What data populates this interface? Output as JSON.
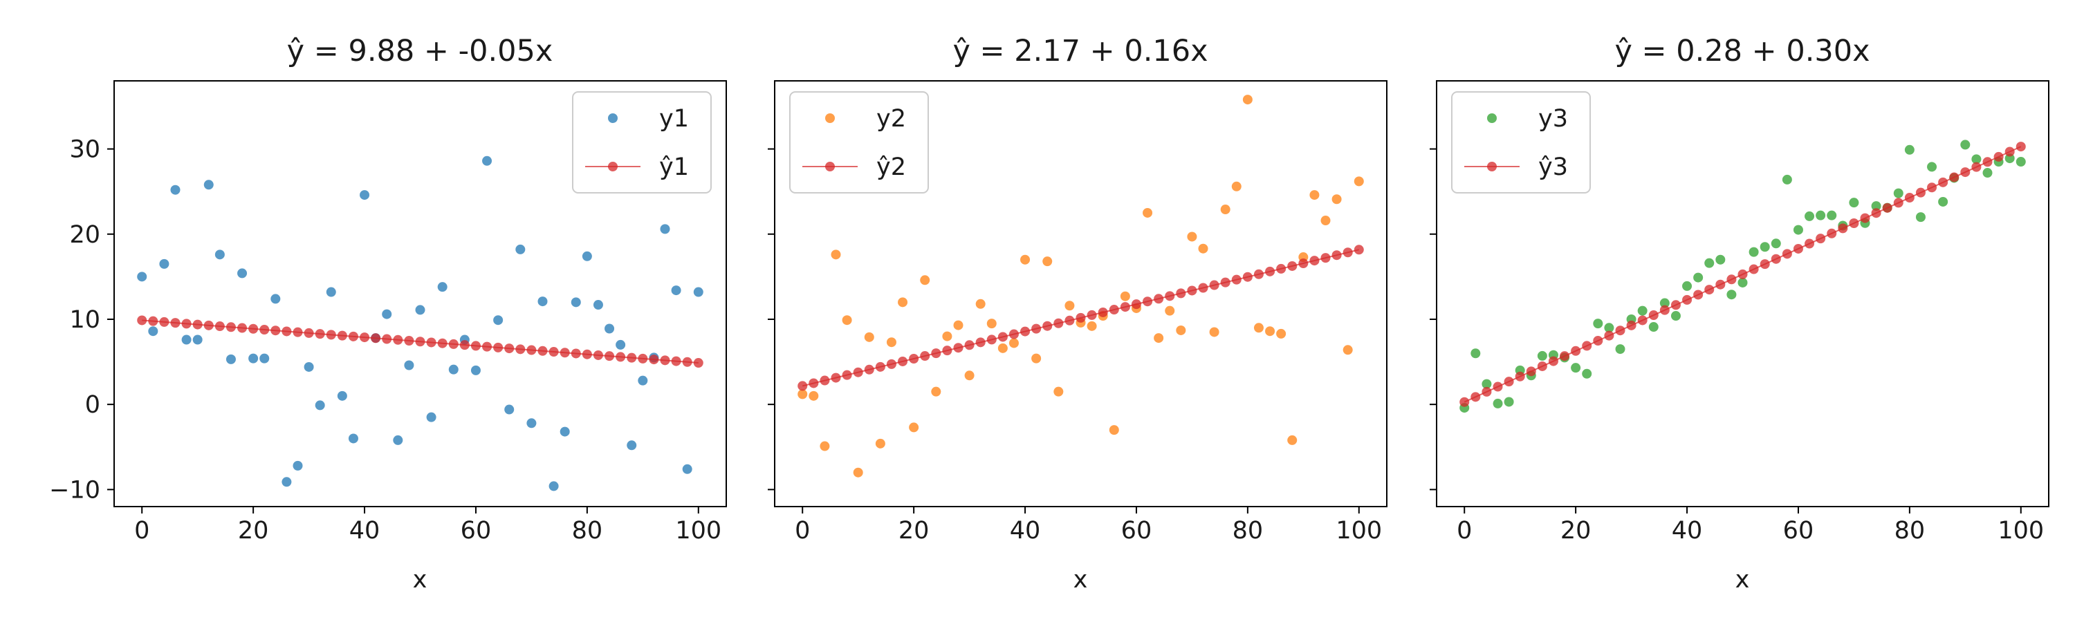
{
  "chart_data": [
    {
      "type": "scatter",
      "title": "ŷ = 9.88 + -0.05x",
      "xlabel": "x",
      "ylabel": "",
      "xlim": [
        -5,
        105
      ],
      "ylim": [
        -12,
        38
      ],
      "xticks": [
        0,
        20,
        40,
        60,
        80,
        100
      ],
      "yticks": [
        -10,
        0,
        10,
        20,
        30
      ],
      "grid": false,
      "legend": "top-right",
      "fit": {
        "intercept": 9.88,
        "slope": -0.05
      },
      "series": [
        {
          "name": "y1",
          "kind": "points",
          "color": "#1f77b4",
          "x": [
            0,
            2,
            4,
            6,
            8,
            10,
            12,
            14,
            16,
            18,
            20,
            22,
            24,
            26,
            28,
            30,
            32,
            34,
            36,
            38,
            40,
            42,
            44,
            46,
            48,
            50,
            52,
            54,
            56,
            58,
            60,
            62,
            64,
            66,
            68,
            70,
            72,
            74,
            76,
            78,
            80,
            82,
            84,
            86,
            88,
            90,
            92,
            94,
            96,
            98,
            100
          ],
          "y": [
            15,
            8.6,
            16.5,
            25.2,
            7.6,
            7.6,
            25.8,
            17.6,
            5.3,
            15.4,
            5.4,
            5.4,
            12.4,
            -9.1,
            -7.2,
            4.4,
            -0.1,
            13.2,
            1,
            -4,
            24.6,
            7.8,
            10.6,
            -4.2,
            4.6,
            11.1,
            -1.5,
            13.8,
            4.1,
            7.6,
            4,
            28.6,
            9.9,
            -0.6,
            18.2,
            -2.2,
            12.1,
            -9.6,
            -3.2,
            12,
            17.4,
            11.7,
            8.9,
            7,
            -4.8,
            2.8,
            5.5,
            20.6,
            13.4,
            -7.6,
            13.2
          ]
        },
        {
          "name": "ŷ1",
          "kind": "fit",
          "color": "#d62728",
          "x": [
            0,
            2,
            4,
            6,
            8,
            10,
            12,
            14,
            16,
            18,
            20,
            22,
            24,
            26,
            28,
            30,
            32,
            34,
            36,
            38,
            40,
            42,
            44,
            46,
            48,
            50,
            52,
            54,
            56,
            58,
            60,
            62,
            64,
            66,
            68,
            70,
            72,
            74,
            76,
            78,
            80,
            82,
            84,
            86,
            88,
            90,
            92,
            94,
            96,
            98,
            100
          ],
          "y": [
            9.88,
            9.78,
            9.68,
            9.58,
            9.48,
            9.38,
            9.28,
            9.18,
            9.08,
            8.98,
            8.88,
            8.78,
            8.68,
            8.58,
            8.48,
            8.38,
            8.28,
            8.18,
            8.08,
            7.98,
            7.88,
            7.78,
            7.68,
            7.58,
            7.48,
            7.38,
            7.28,
            7.18,
            7.08,
            6.98,
            6.88,
            6.78,
            6.68,
            6.58,
            6.48,
            6.38,
            6.28,
            6.18,
            6.08,
            5.98,
            5.88,
            5.78,
            5.68,
            5.58,
            5.48,
            5.38,
            5.28,
            5.18,
            5.08,
            4.98,
            4.88
          ]
        }
      ]
    },
    {
      "type": "scatter",
      "title": "ŷ = 2.17 + 0.16x",
      "xlabel": "x",
      "ylabel": "",
      "xlim": [
        -5,
        105
      ],
      "ylim": [
        -12,
        38
      ],
      "xticks": [
        0,
        20,
        40,
        60,
        80,
        100
      ],
      "yticks": [
        -10,
        0,
        10,
        20,
        30
      ],
      "grid": false,
      "legend": "top-left",
      "fit": {
        "intercept": 2.17,
        "slope": 0.16
      },
      "series": [
        {
          "name": "y2",
          "kind": "points",
          "color": "#ff7f0e",
          "x": [
            0,
            2,
            4,
            6,
            8,
            10,
            12,
            14,
            16,
            18,
            20,
            22,
            24,
            26,
            28,
            30,
            32,
            34,
            36,
            38,
            40,
            42,
            44,
            46,
            48,
            50,
            52,
            54,
            56,
            58,
            60,
            62,
            64,
            66,
            68,
            70,
            72,
            74,
            76,
            78,
            80,
            82,
            84,
            86,
            88,
            90,
            92,
            94,
            96,
            98,
            100
          ],
          "y": [
            1.2,
            1,
            -4.9,
            17.6,
            9.9,
            -8,
            7.9,
            -4.6,
            7.3,
            12,
            -2.7,
            14.6,
            1.5,
            8,
            9.3,
            3.4,
            11.8,
            9.5,
            6.6,
            7.2,
            17,
            5.4,
            16.8,
            1.5,
            11.6,
            9.6,
            9.2,
            10.4,
            -3,
            12.7,
            11.3,
            22.5,
            7.8,
            11,
            8.7,
            19.7,
            18.3,
            8.5,
            22.9,
            25.6,
            35.8,
            9,
            8.6,
            8.3,
            -4.2,
            17.3,
            24.6,
            21.6,
            24.1,
            6.4,
            26.2
          ]
        },
        {
          "name": "ŷ2",
          "kind": "fit",
          "color": "#d62728",
          "x": [
            0,
            2,
            4,
            6,
            8,
            10,
            12,
            14,
            16,
            18,
            20,
            22,
            24,
            26,
            28,
            30,
            32,
            34,
            36,
            38,
            40,
            42,
            44,
            46,
            48,
            50,
            52,
            54,
            56,
            58,
            60,
            62,
            64,
            66,
            68,
            70,
            72,
            74,
            76,
            78,
            80,
            82,
            84,
            86,
            88,
            90,
            92,
            94,
            96,
            98,
            100
          ],
          "y": [
            2.17,
            2.49,
            2.81,
            3.13,
            3.45,
            3.77,
            4.09,
            4.41,
            4.73,
            5.05,
            5.37,
            5.69,
            6.01,
            6.33,
            6.65,
            6.97,
            7.29,
            7.61,
            7.93,
            8.25,
            8.57,
            8.89,
            9.21,
            9.53,
            9.85,
            10.17,
            10.49,
            10.81,
            11.13,
            11.45,
            11.77,
            12.09,
            12.41,
            12.73,
            13.05,
            13.37,
            13.69,
            14.01,
            14.33,
            14.65,
            14.97,
            15.29,
            15.61,
            15.93,
            16.25,
            16.57,
            16.89,
            17.21,
            17.53,
            17.85,
            18.17
          ]
        }
      ]
    },
    {
      "type": "scatter",
      "title": "ŷ = 0.28 + 0.30x",
      "xlabel": "x",
      "ylabel": "",
      "xlim": [
        -5,
        105
      ],
      "ylim": [
        -12,
        38
      ],
      "xticks": [
        0,
        20,
        40,
        60,
        80,
        100
      ],
      "yticks": [
        -10,
        0,
        10,
        20,
        30
      ],
      "grid": false,
      "legend": "top-left",
      "fit": {
        "intercept": 0.28,
        "slope": 0.3
      },
      "series": [
        {
          "name": "y3",
          "kind": "points",
          "color": "#2ca02c",
          "x": [
            0,
            2,
            4,
            6,
            8,
            10,
            12,
            14,
            16,
            18,
            20,
            22,
            24,
            26,
            28,
            30,
            32,
            34,
            36,
            38,
            40,
            42,
            44,
            46,
            48,
            50,
            52,
            54,
            56,
            58,
            60,
            62,
            64,
            66,
            68,
            70,
            72,
            74,
            76,
            78,
            80,
            82,
            84,
            86,
            88,
            90,
            92,
            94,
            96,
            98,
            100
          ],
          "y": [
            -0.4,
            6,
            2.4,
            0.1,
            0.3,
            4,
            3.4,
            5.7,
            5.8,
            5.5,
            4.3,
            3.6,
            9.5,
            9,
            6.5,
            10,
            11,
            9.1,
            11.9,
            10.4,
            13.9,
            14.9,
            16.6,
            17,
            12.9,
            14.3,
            17.9,
            18.5,
            18.9,
            26.4,
            20.5,
            22.1,
            22.2,
            22.2,
            21,
            23.7,
            21.3,
            23.3,
            23.1,
            24.8,
            29.9,
            22,
            27.9,
            23.8,
            26.6,
            30.5,
            28.8,
            27.2,
            28.5,
            28.9,
            28.5
          ]
        },
        {
          "name": "ŷ3",
          "kind": "fit",
          "color": "#d62728",
          "x": [
            0,
            2,
            4,
            6,
            8,
            10,
            12,
            14,
            16,
            18,
            20,
            22,
            24,
            26,
            28,
            30,
            32,
            34,
            36,
            38,
            40,
            42,
            44,
            46,
            48,
            50,
            52,
            54,
            56,
            58,
            60,
            62,
            64,
            66,
            68,
            70,
            72,
            74,
            76,
            78,
            80,
            82,
            84,
            86,
            88,
            90,
            92,
            94,
            96,
            98,
            100
          ],
          "y": [
            0.28,
            0.88,
            1.48,
            2.08,
            2.68,
            3.28,
            3.88,
            4.48,
            5.08,
            5.68,
            6.28,
            6.88,
            7.48,
            8.08,
            8.68,
            9.28,
            9.88,
            10.48,
            11.08,
            11.68,
            12.28,
            12.88,
            13.48,
            14.08,
            14.68,
            15.28,
            15.88,
            16.48,
            17.08,
            17.68,
            18.28,
            18.88,
            19.48,
            20.08,
            20.68,
            21.28,
            21.88,
            22.48,
            23.08,
            23.68,
            24.28,
            24.88,
            25.48,
            26.08,
            26.68,
            27.28,
            27.88,
            28.48,
            29.08,
            29.68,
            30.28
          ]
        }
      ]
    }
  ]
}
